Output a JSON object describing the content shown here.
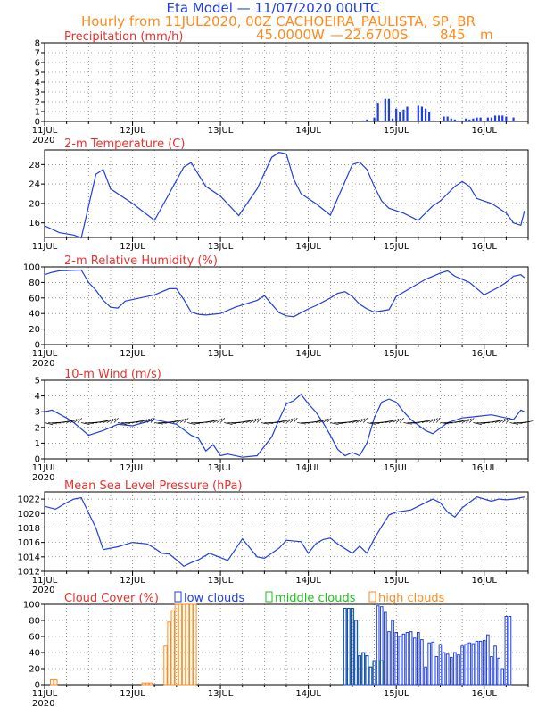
{
  "header": {
    "title": "Eta Model — 11/07/2020 00UTC",
    "line2": "Hourly from 11JUL2020, 00Z  CACHOEIRA_PAULISTA, SP, BR",
    "lon": "45.0000W",
    "lat": "22.6700S",
    "elevation": "845",
    "elevation_unit": "m"
  },
  "colors": {
    "series": "#1f3fe0",
    "title": "#e8322e",
    "header_blue": "#1f3fe0",
    "header_orange": "#ff8a1c",
    "low": "#1f3fe0",
    "middle": "#19c21b",
    "high": "#ff8a1c",
    "grid": "#555555"
  },
  "x_axis": {
    "hours_total": 132,
    "tick_labels": [
      "11JUL",
      "12JUL",
      "13JUL",
      "14JUL",
      "15JUL",
      "16JUL"
    ],
    "year_label": "2020"
  },
  "chart_data": [
    {
      "type": "bar",
      "name": "precip",
      "title": "Precipitation (mm/h)",
      "ylim": [
        0,
        8
      ],
      "yticks": [
        0,
        1,
        2,
        3,
        4,
        5,
        6,
        7,
        8
      ],
      "x": [
        87,
        88,
        90,
        91,
        93,
        94,
        95,
        96,
        97,
        98,
        99,
        102,
        103,
        104,
        105,
        106,
        109,
        110,
        111,
        112,
        113,
        114,
        115,
        116,
        117,
        118,
        119,
        121,
        122,
        123,
        124,
        125,
        126,
        128
      ],
      "values": [
        0.1,
        0.2,
        0.4,
        1.9,
        2.3,
        2.3,
        0.3,
        1.3,
        1.0,
        1.2,
        1.5,
        1.6,
        1.5,
        1.3,
        1.0,
        0.1,
        0.5,
        0.5,
        0.3,
        0.2,
        0.1,
        0.1,
        0.3,
        0.2,
        0.3,
        0.4,
        0.4,
        0.4,
        0.4,
        0.6,
        0.6,
        0.6,
        0.5,
        0.4
      ]
    },
    {
      "type": "line",
      "name": "temperature",
      "title": "2-m Temperature (C)",
      "ylim": [
        13,
        31
      ],
      "yticks": [
        16,
        20,
        24,
        28
      ],
      "x": [
        0,
        4,
        8,
        10,
        14,
        16,
        18,
        24,
        30,
        34,
        38,
        40,
        44,
        48,
        53,
        58,
        62,
        64,
        66,
        68,
        70,
        74,
        78,
        82,
        84,
        86,
        88,
        90,
        92,
        94,
        96,
        98,
        102,
        106,
        108,
        110,
        112,
        114,
        116,
        118,
        120,
        122,
        124,
        126,
        127,
        128,
        130,
        131
      ],
      "values": [
        15.4,
        14,
        13.5,
        12.9,
        26,
        27,
        23,
        20,
        16.5,
        22,
        27.5,
        28.4,
        23.5,
        21.5,
        17.5,
        23,
        29.5,
        30.5,
        30.2,
        25,
        22,
        20,
        17.6,
        24.5,
        28,
        28.5,
        27,
        23.5,
        20.5,
        19,
        18.5,
        18,
        16.5,
        19.5,
        20.5,
        22,
        23.5,
        24.5,
        23.5,
        21,
        20.5,
        20,
        19,
        18,
        17,
        16,
        15.5,
        18.5
      ]
    },
    {
      "type": "line",
      "name": "humidity",
      "title": "2-m Relative Humidity (%)",
      "ylim": [
        0,
        100
      ],
      "yticks": [
        0,
        20,
        40,
        60,
        80,
        100
      ],
      "x": [
        0,
        2,
        4,
        10,
        12,
        14,
        16,
        18,
        20,
        22,
        26,
        30,
        34,
        36,
        38,
        40,
        42,
        44,
        48,
        52,
        58,
        60,
        62,
        64,
        66,
        68,
        72,
        74,
        78,
        80,
        82,
        84,
        86,
        88,
        90,
        94,
        96,
        100,
        104,
        108,
        110,
        112,
        116,
        120,
        124,
        126,
        128,
        130,
        131
      ],
      "values": [
        90,
        93,
        95,
        96,
        80,
        70,
        57,
        48,
        47,
        56,
        60,
        64,
        72,
        72,
        58,
        42,
        39,
        38,
        40,
        48,
        57,
        63,
        52,
        41,
        37,
        36,
        46,
        50,
        60,
        66,
        68,
        62,
        52,
        46,
        42,
        45,
        62,
        73,
        84,
        92,
        95,
        88,
        80,
        64,
        74,
        80,
        88,
        90,
        86
      ]
    },
    {
      "type": "line",
      "name": "wind",
      "title": "10-m Wind (m/s)",
      "ylim": [
        0,
        5
      ],
      "yticks": [
        0,
        1,
        2,
        3,
        4,
        5
      ],
      "x": [
        0,
        2,
        6,
        8,
        12,
        16,
        20,
        24,
        30,
        36,
        40,
        42,
        44,
        46,
        48,
        50,
        54,
        58,
        62,
        64,
        66,
        68,
        70,
        72,
        74,
        76,
        78,
        80,
        82,
        84,
        86,
        88,
        90,
        92,
        94,
        96,
        98,
        100,
        104,
        106,
        110,
        114,
        118,
        122,
        126,
        128,
        130,
        131
      ],
      "values": [
        3,
        3.1,
        2.6,
        2.3,
        1.5,
        1.8,
        2.2,
        2.1,
        2.5,
        2.2,
        1.5,
        1.3,
        0.5,
        0.9,
        0.2,
        0.3,
        0.1,
        0.2,
        1.4,
        2.5,
        3.5,
        3.7,
        4.1,
        3.5,
        3,
        2.3,
        1.5,
        0.6,
        0.2,
        0.4,
        0.2,
        1,
        2.6,
        3.6,
        3.8,
        3.6,
        3,
        2.5,
        1.8,
        1.6,
        2.3,
        2.6,
        2.7,
        2.8,
        2.6,
        2.5,
        3.1,
        3
      ]
    },
    {
      "type": "line",
      "name": "pressure",
      "title": "Mean Sea Level Pressure (hPa)",
      "ylim": [
        1012,
        1023
      ],
      "yticks": [
        1012,
        1014,
        1016,
        1018,
        1020,
        1022
      ],
      "x": [
        0,
        3,
        6,
        8,
        10,
        14,
        16,
        18,
        20,
        24,
        28,
        30,
        32,
        34,
        36,
        38,
        40,
        42,
        45,
        50,
        54,
        58,
        60,
        62,
        64,
        66,
        70,
        72,
        74,
        76,
        78,
        80,
        84,
        86,
        88,
        90,
        92,
        94,
        96,
        100,
        104,
        106,
        108,
        110,
        112,
        114,
        118,
        122,
        124,
        126,
        128,
        130,
        131
      ],
      "values": [
        1021,
        1020.6,
        1021.5,
        1022,
        1022.2,
        1018,
        1015,
        1015.2,
        1015.4,
        1016,
        1015.8,
        1015.2,
        1014.5,
        1014.4,
        1013.6,
        1012.7,
        1013.2,
        1013.6,
        1014.5,
        1013.5,
        1016.5,
        1014,
        1013.8,
        1014.5,
        1015.2,
        1016.3,
        1016.1,
        1014.5,
        1015.8,
        1016.4,
        1016.6,
        1015.8,
        1014.5,
        1015.5,
        1014.5,
        1016.5,
        1018.2,
        1019.8,
        1020.2,
        1020.5,
        1021.5,
        1022,
        1021.5,
        1020.2,
        1019.5,
        1020.8,
        1022.3,
        1021.7,
        1022,
        1021.9,
        1022,
        1022.2,
        1022.3
      ]
    },
    {
      "type": "bar",
      "name": "clouds",
      "title": "Cloud Cover (%)",
      "legend": [
        "low clouds",
        "middle clouds",
        "high clouds"
      ],
      "ylim": [
        0,
        100
      ],
      "yticks": [
        0,
        20,
        40,
        60,
        80,
        100
      ],
      "series": [
        {
          "name": "high clouds",
          "x": [
            2,
            3,
            27,
            28,
            29,
            33,
            34,
            35,
            36,
            37,
            38,
            39,
            40,
            41
          ],
          "values": [
            6,
            6,
            2,
            2,
            2,
            48,
            78,
            92,
            100,
            100,
            100,
            100,
            100,
            100
          ]
        },
        {
          "name": "middle clouds",
          "x": [
            82,
            83,
            84,
            85,
            86,
            87,
            88,
            89,
            90,
            92
          ],
          "values": [
            95,
            95,
            95,
            80,
            36,
            40,
            36,
            22,
            30,
            30
          ]
        },
        {
          "name": "low clouds",
          "x": [
            82,
            83,
            84,
            85,
            86,
            87,
            88,
            89,
            90,
            91,
            92,
            93,
            94,
            95,
            96,
            97,
            98,
            99,
            100,
            101,
            102,
            103,
            104,
            105,
            106,
            107,
            108,
            109,
            110,
            111,
            112,
            113,
            114,
            115,
            116,
            117,
            118,
            119,
            120,
            121,
            122,
            123,
            124,
            125,
            126,
            127
          ],
          "values": [
            95,
            95,
            95,
            80,
            36,
            40,
            36,
            22,
            30,
            98,
            97,
            90,
            66,
            80,
            65,
            60,
            63,
            65,
            66,
            58,
            65,
            56,
            22,
            52,
            53,
            35,
            50,
            40,
            38,
            34,
            40,
            37,
            48,
            50,
            52,
            51,
            54,
            54,
            55,
            62,
            35,
            48,
            33,
            20,
            85,
            85
          ]
        }
      ]
    }
  ]
}
